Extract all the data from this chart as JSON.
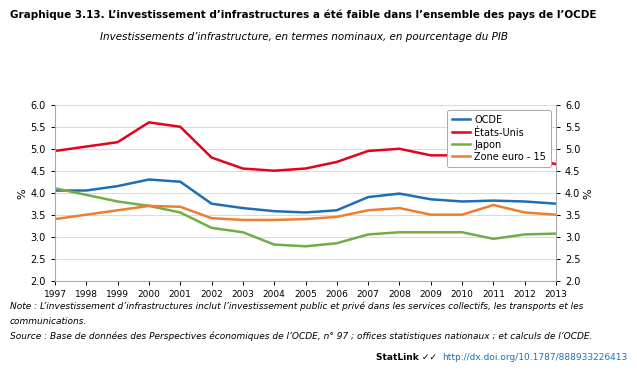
{
  "title": "Graphique 3.13. L’investissement d’infrastructures a été faible dans l’ensemble des pays de l’OCDE",
  "subtitle": "Investissements d’infrastructure, en termes nominaux, en pourcentage du PIB",
  "ylabel": "%",
  "years": [
    1997,
    1998,
    1999,
    2000,
    2001,
    2002,
    2003,
    2004,
    2005,
    2006,
    2007,
    2008,
    2009,
    2010,
    2011,
    2012,
    2013
  ],
  "OCDE": [
    4.05,
    4.05,
    4.15,
    4.3,
    4.25,
    3.75,
    3.65,
    3.58,
    3.55,
    3.6,
    3.9,
    3.98,
    3.85,
    3.8,
    3.82,
    3.8,
    3.75
  ],
  "Etats_Unis": [
    4.95,
    5.05,
    5.15,
    5.6,
    5.5,
    4.8,
    4.55,
    4.5,
    4.55,
    4.7,
    4.95,
    5.0,
    4.85,
    4.85,
    4.83,
    4.8,
    4.65
  ],
  "Japon": [
    4.1,
    3.95,
    3.8,
    3.7,
    3.55,
    3.2,
    3.1,
    2.82,
    2.78,
    2.85,
    3.05,
    3.1,
    3.1,
    3.1,
    2.95,
    3.05,
    3.07
  ],
  "Zone_euro_15": [
    3.4,
    3.5,
    3.6,
    3.7,
    3.68,
    3.42,
    3.38,
    3.38,
    3.4,
    3.45,
    3.6,
    3.65,
    3.5,
    3.5,
    3.72,
    3.55,
    3.5
  ],
  "colors": {
    "OCDE": "#1f6eb5",
    "Etats_Unis": "#e8001c",
    "Japon": "#70ad47",
    "Zone_euro_15": "#ed7d31"
  },
  "legend_labels": [
    "OCDE",
    "États-Unis",
    "Japon",
    "Zone euro - 15"
  ],
  "ylim": [
    2.0,
    6.0
  ],
  "yticks": [
    2.0,
    2.5,
    3.0,
    3.5,
    4.0,
    4.5,
    5.0,
    5.5,
    6.0
  ],
  "note": "Note : L’investissement d’infrastructures inclut l’investissement public et privé dans les services collectifs, les transports et les communications.",
  "source": "Source : Base de données des Perspectives économiques de l’OCDE, n° 97 ; offices statistiques nationaux ; et calculs de l’OCDE.",
  "statlink_label": "StatLink",
  "statlink_url": "http://dx.doi.org/10.1787/888933226413",
  "bg_color": "#ffffff",
  "line_width": 1.8
}
